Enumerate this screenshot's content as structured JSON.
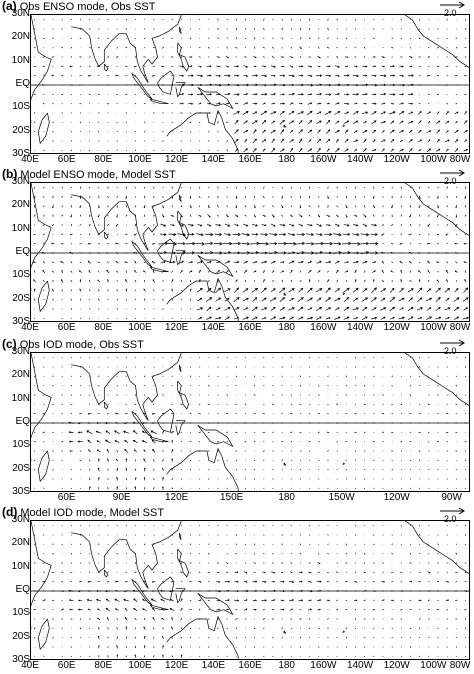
{
  "panels": [
    {
      "title_letter": "(a)",
      "title_text": "Obs ENSO mode, Obs SST",
      "reference_vector": "2.0",
      "lat_labels": [
        "30N",
        "20N",
        "10N",
        "EQ",
        "10S",
        "20S",
        "30S"
      ],
      "lon_labels": [
        "40E",
        "60E",
        "80E",
        "100E",
        "120E",
        "140E",
        "160E",
        "180",
        "160W",
        "140W",
        "120W",
        "100W",
        "80W"
      ],
      "lon_range": [
        40,
        280
      ]
    },
    {
      "title_letter": "(b)",
      "title_text": "Model ENSO mode, Model SST",
      "reference_vector": "2.0",
      "lat_labels": [
        "30N",
        "20N",
        "10N",
        "EQ",
        "10S",
        "20S",
        "30S"
      ],
      "lon_labels": [
        "40E",
        "60E",
        "80E",
        "100E",
        "120E",
        "140E",
        "160E",
        "180",
        "160W",
        "140W",
        "120W",
        "100W",
        "80W"
      ],
      "lon_range": [
        40,
        280
      ]
    },
    {
      "title_letter": "(c)",
      "title_text": "Obs IOD mode, Obs SST",
      "reference_vector": "2.0",
      "lat_labels": [
        "30N",
        "20N",
        "10N",
        "EQ",
        "10S",
        "20S",
        "30S"
      ],
      "lon_labels": [
        "60E",
        "90E",
        "120E",
        "150E",
        "180",
        "150W",
        "120W",
        "90W"
      ],
      "lon_range": [
        40,
        280
      ]
    },
    {
      "title_letter": "(d)",
      "title_text": "Model IOD mode, Model SST",
      "reference_vector": "2.0",
      "lat_labels": [
        "30N",
        "20N",
        "10N",
        "EQ",
        "10S",
        "20S",
        "30S"
      ],
      "lon_labels": [
        "40E",
        "60E",
        "80E",
        "100E",
        "120E",
        "140E",
        "160E",
        "180",
        "160W",
        "140W",
        "120W",
        "100W",
        "80W"
      ],
      "lon_range": [
        40,
        280
      ]
    }
  ],
  "colors": {
    "vectors": "#000000",
    "coast": "#000000",
    "background": "#ffffff"
  }
}
